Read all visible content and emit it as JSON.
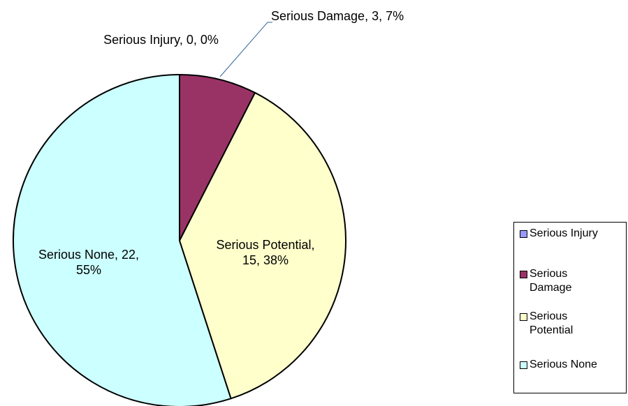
{
  "chart_data": {
    "type": "pie",
    "categories": [
      "Serious Injury",
      "Serious Damage",
      "Serious Potential",
      "Serious None"
    ],
    "values": [
      0,
      3,
      15,
      22
    ],
    "value_labels": [
      "Serious Injury, 0, 0%",
      "Serious Damage, 3, 7%",
      "Serious Potential, 15, 38%",
      "Serious None, 22, 55%"
    ],
    "colors": [
      "#9999ff",
      "#993366",
      "#ffffcc",
      "#ccffff"
    ],
    "legend": "right"
  }
}
